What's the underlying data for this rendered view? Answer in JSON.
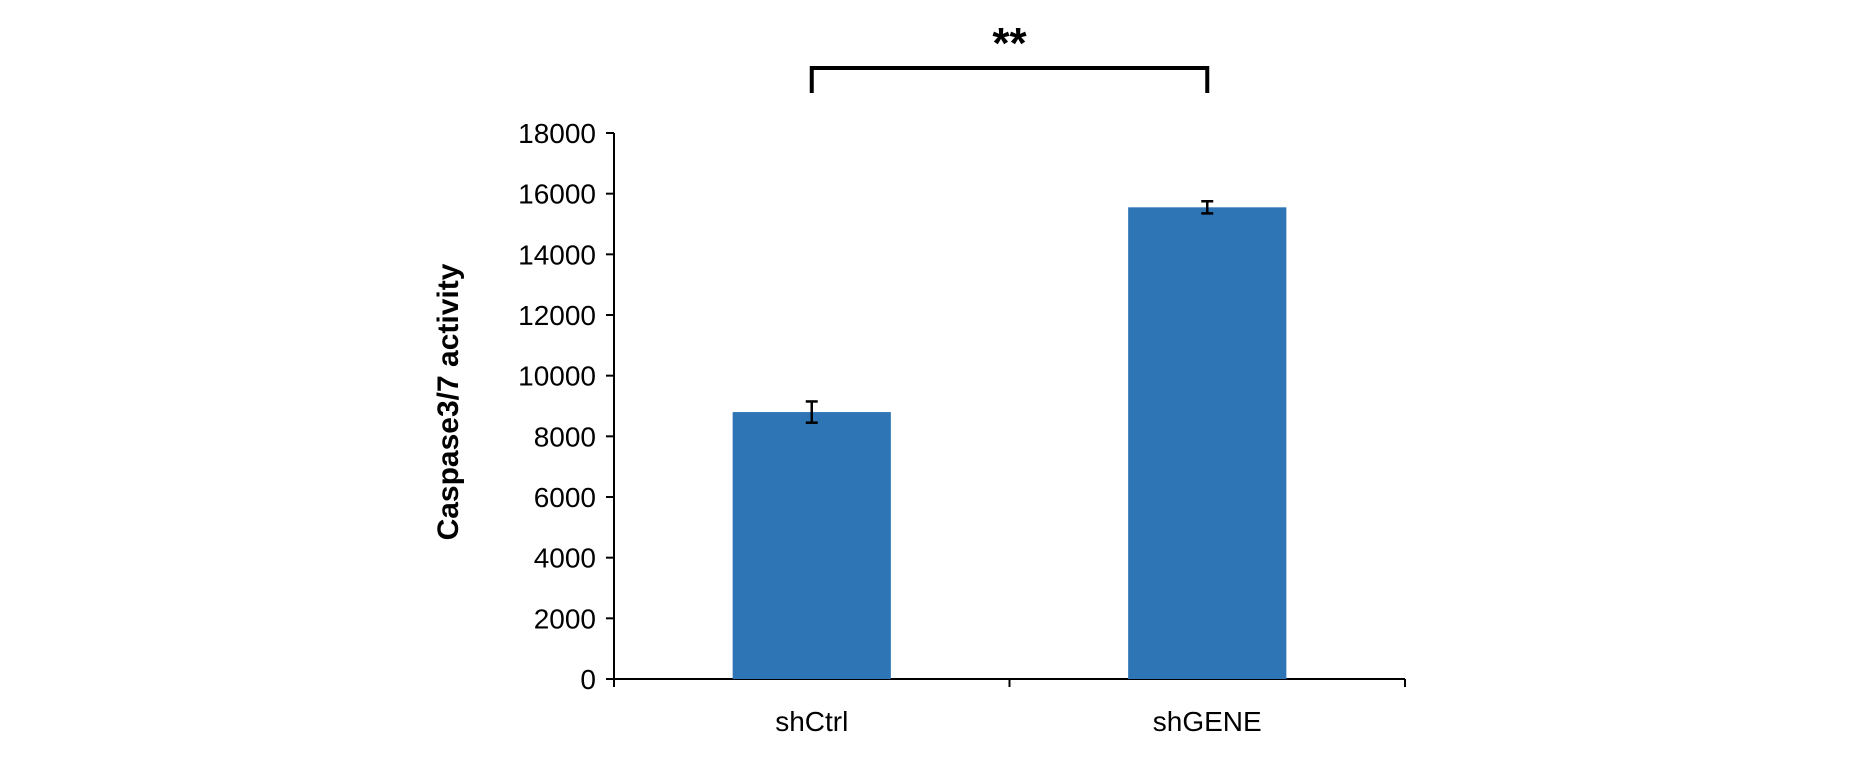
{
  "chart_data": {
    "type": "bar",
    "title": "",
    "xlabel": "",
    "ylabel": "Caspase3/7 activity",
    "ylim": [
      0,
      18000
    ],
    "yticks": [
      0,
      2000,
      4000,
      6000,
      8000,
      10000,
      12000,
      14000,
      16000,
      18000
    ],
    "categories": [
      "shCtrl",
      "shGENE"
    ],
    "values": [
      8800,
      15550
    ],
    "errors": [
      350,
      200
    ],
    "bar_color": "#2E75B6",
    "grid": false,
    "legend": "none",
    "annotations": [
      {
        "type": "significance-bracket",
        "text": "**",
        "between": [
          "shCtrl",
          "shGENE"
        ]
      }
    ]
  }
}
